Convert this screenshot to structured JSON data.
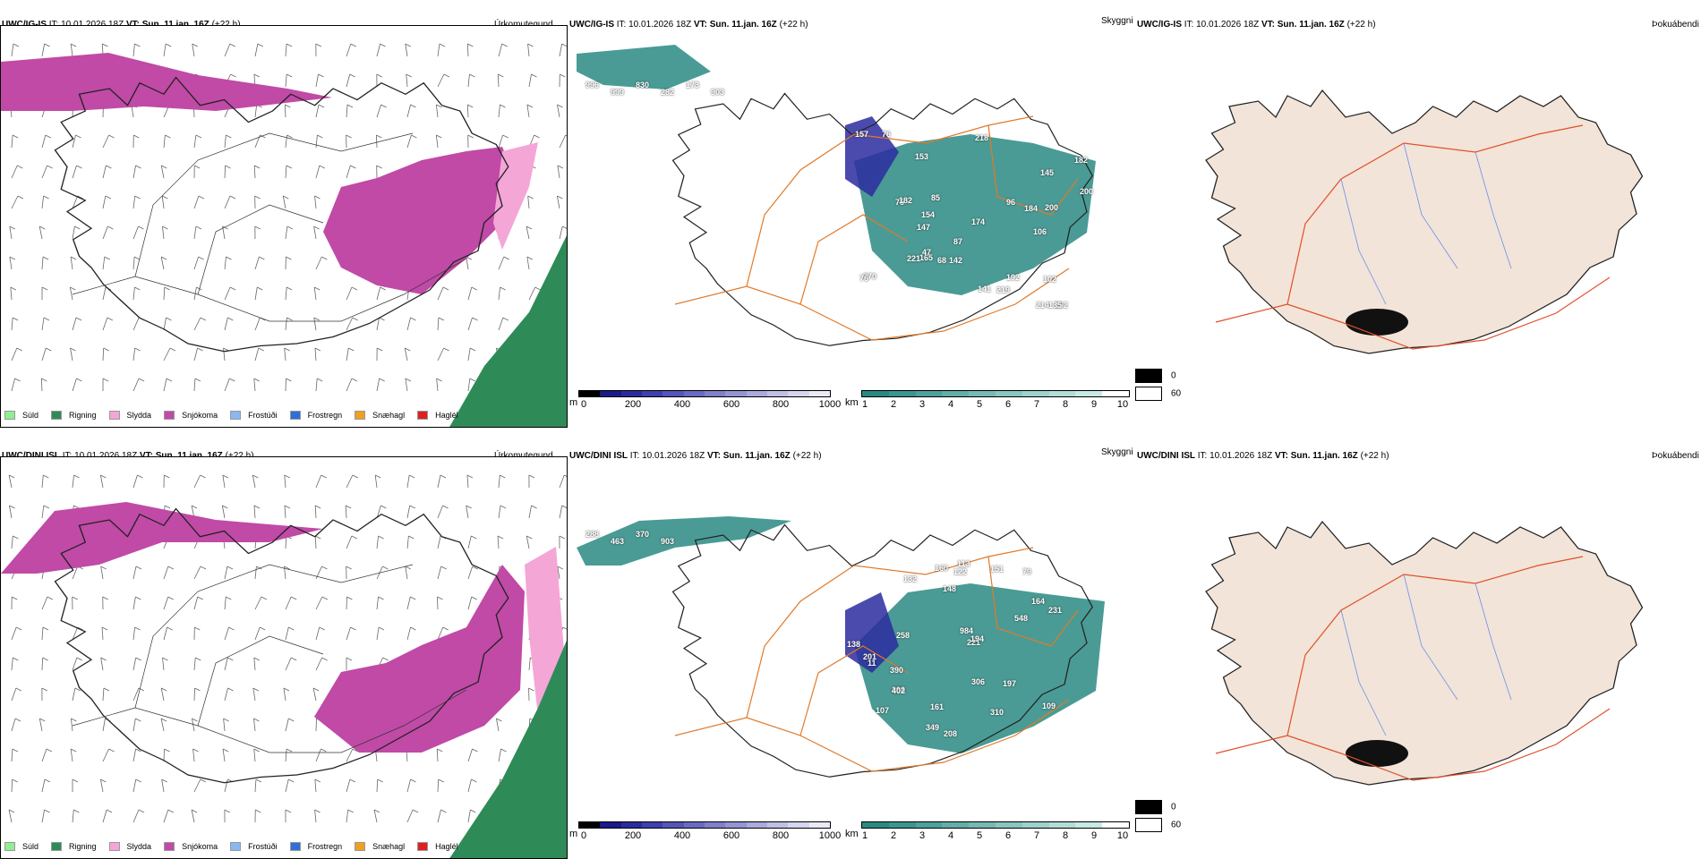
{
  "rows": [
    {
      "model": "UWC/IG-IS",
      "it": "IT: 10.01.2026 18Z",
      "vt_label": "VT:",
      "vt": "Sun. 11.jan. 16Z",
      "lead": "(+22 h)",
      "visibility_labels": [
        "996",
        "999",
        "830",
        "282",
        "173",
        "903",
        "87",
        "75",
        "76",
        "106",
        "162",
        "153",
        "142",
        "147",
        "165",
        "184",
        "200",
        "218",
        "157",
        "214",
        "154",
        "192",
        "174",
        "200",
        "182",
        "85",
        "135",
        "182",
        "219",
        "221",
        "102",
        "96",
        "141",
        "770",
        "145",
        "76",
        "47",
        "68"
      ]
    },
    {
      "model": "UWC/DINI ISL",
      "it": "IT: 10.01.2026 18Z",
      "vt_label": "VT:",
      "vt": "Sun. 11.jan. 16Z",
      "lead": "(+22 h)",
      "visibility_labels": [
        "288",
        "463",
        "370",
        "903",
        "107",
        "79",
        "132",
        "164",
        "306",
        "258",
        "390",
        "298",
        "231",
        "548",
        "201",
        "113",
        "197",
        "221",
        "208",
        "160",
        "109",
        "138",
        "402",
        "349",
        "310",
        "122",
        "148",
        "194",
        "984",
        "161",
        "11",
        "151"
      ]
    }
  ],
  "panel_titles": {
    "precip_type": "Úrkomutegund",
    "visibility": "Skyggni",
    "fog": "Þokuábendi"
  },
  "precip_legend": [
    {
      "label": "Súld",
      "color": "#90ee90"
    },
    {
      "label": "Rigning",
      "color": "#2e8b57"
    },
    {
      "label": "Slydda",
      "color": "#f4a6d7"
    },
    {
      "label": "Snjókoma",
      "color": "#c04aa6"
    },
    {
      "label": "Frostúði",
      "color": "#8ab8f0"
    },
    {
      "label": "Frostregn",
      "color": "#2f6fd6"
    },
    {
      "label": "Snæhagl",
      "color": "#f0a020"
    },
    {
      "label": "Haglél",
      "color": "#e02020"
    }
  ],
  "height_bar": {
    "unit": "m",
    "ticks": [
      "0",
      "200",
      "400",
      "600",
      "800",
      "1000"
    ],
    "colors": [
      "#000000",
      "#1a1a8a",
      "#2b2ba0",
      "#3f3fb0",
      "#5555bb",
      "#6a6ac4",
      "#8080cc",
      "#9595d4",
      "#aaaadd",
      "#c0c0e6",
      "#d5d5ee",
      "#eaeaf6"
    ]
  },
  "vis_bar": {
    "unit": "km",
    "ticks": [
      "1",
      "2",
      "3",
      "4",
      "5",
      "6",
      "7",
      "8",
      "9",
      "10"
    ],
    "colors": [
      "#2a8a82",
      "#3a9690",
      "#4ea29c",
      "#62aea8",
      "#76bab4",
      "#8ac6c0",
      "#9ed2cc",
      "#b2ded8",
      "#c6eae4",
      "#ffffff"
    ]
  },
  "fog_legend": {
    "black_label": "0",
    "white_label": "60"
  },
  "colors": {
    "snow": "#c04aa6",
    "sleet": "#f4a6d7",
    "rain": "#2e8b57",
    "roads": "#e07a2a",
    "vis": "#2a8a82",
    "height": "#2b2ba0",
    "land": "#f2e4d8"
  }
}
